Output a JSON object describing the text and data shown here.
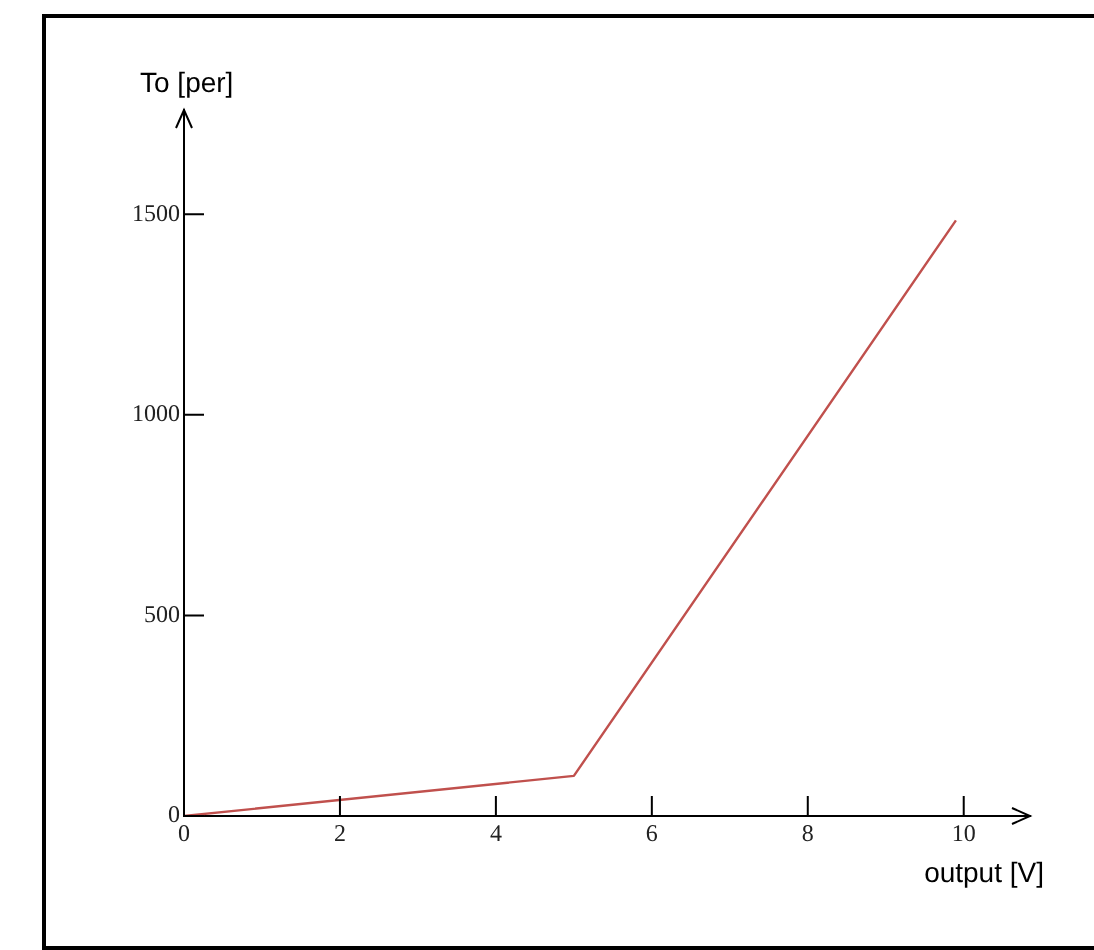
{
  "chart_data": {
    "type": "line",
    "xlabel": "output [V]",
    "ylabel": "To [per]",
    "x": [
      0,
      5,
      9.9
    ],
    "series": [
      {
        "color": "#c0504d",
        "values": [
          0,
          100,
          1485
        ]
      }
    ],
    "xlim": [
      0,
      10.85
    ],
    "xticks": [
      0,
      2,
      4,
      6,
      8,
      10
    ],
    "ylim": [
      0,
      1760
    ],
    "yticks": [
      0,
      500,
      1000,
      1500
    ],
    "grid": false,
    "legend": false,
    "marker": "none",
    "line_style": "solid"
  }
}
